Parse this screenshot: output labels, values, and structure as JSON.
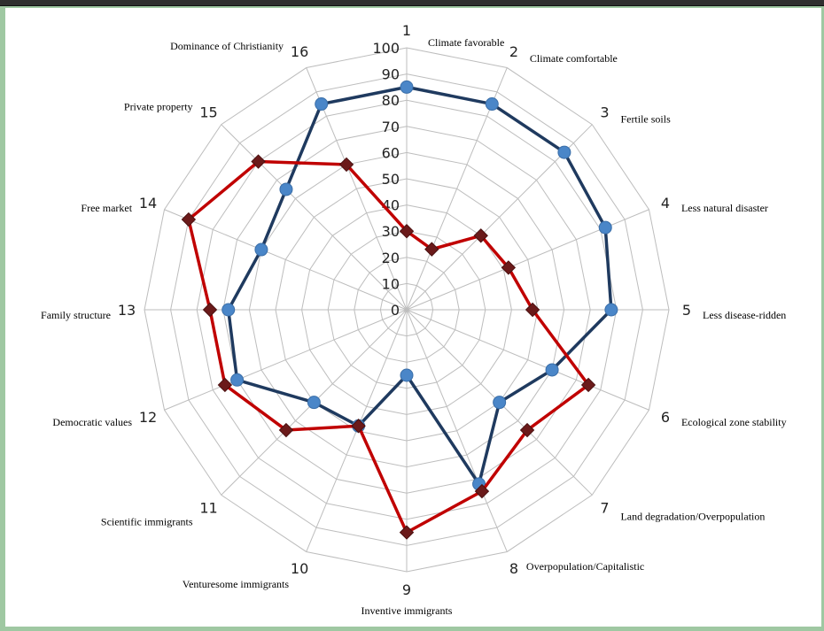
{
  "chart_data": {
    "type": "radar",
    "categories": [
      "Climate favorable",
      "Climate comfortable",
      "Fertile soils",
      "Less natural disaster",
      "Less disease-ridden",
      "Ecological zone stability",
      "Land degradation/Overpopulation",
      "Overpopulation/Capitalistic",
      "Inventive immigrants",
      "Venturesome immigrants",
      "Scientific immigrants",
      "Democratic values",
      "Family structure",
      "Free market",
      "Private property",
      "Dominance of Christianity"
    ],
    "category_indices": [
      "1",
      "2",
      "3",
      "4",
      "5",
      "6",
      "7",
      "8",
      "9",
      "10",
      "11",
      "12",
      "13",
      "14",
      "15",
      "16"
    ],
    "rlim": [
      0,
      100
    ],
    "ticks": [
      "0",
      "10",
      "20",
      "30",
      "40",
      "50",
      "60",
      "70",
      "80",
      "90",
      "100"
    ],
    "series": [
      {
        "color": "#1f3a5f",
        "marker": "circle",
        "marker_color": "#4a86c8",
        "values": [
          85,
          85,
          85,
          82,
          78,
          60,
          50,
          72,
          25,
          48,
          50,
          70,
          68,
          60,
          65,
          85
        ]
      },
      {
        "color": "#c00000",
        "marker": "diamond",
        "marker_color": "#6b1a1a",
        "values": [
          30,
          25,
          40,
          42,
          48,
          75,
          65,
          75,
          85,
          48,
          65,
          75,
          75,
          90,
          80,
          60
        ]
      }
    ],
    "grid": true
  }
}
